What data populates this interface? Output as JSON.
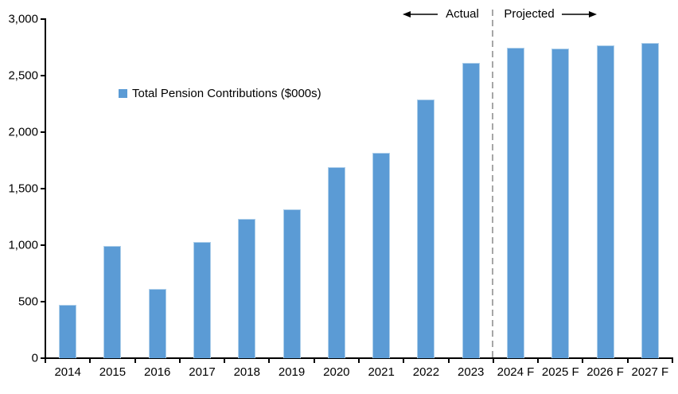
{
  "colors": {
    "bar_fill": "#5B9BD5",
    "bar_edge": "#aecfea",
    "divider": "#a6a6a6",
    "axis": "#000000",
    "background": "#ffffff"
  },
  "legend": {
    "label": "Total Pension Contributions ($000s)",
    "swatch_icon": "blue-square-legend-marker"
  },
  "annotations": {
    "actual_label": "Actual",
    "projected_label": "Projected",
    "actual_arrow_icon": "left-arrow-icon",
    "projected_arrow_icon": "right-arrow-icon"
  },
  "chart_data": {
    "type": "bar",
    "title": "",
    "xlabel": "",
    "ylabel": "",
    "series_name": "Total Pension Contributions ($000s)",
    "categories": [
      "2014",
      "2015",
      "2016",
      "2017",
      "2018",
      "2019",
      "2020",
      "2021",
      "2022",
      "2023",
      "2024 F",
      "2025 F",
      "2026 F",
      "2027 F"
    ],
    "values": [
      470,
      990,
      610,
      1030,
      1230,
      1320,
      1690,
      1820,
      2290,
      2610,
      2750,
      2740,
      2770,
      2790
    ],
    "ylim": [
      0,
      3000
    ],
    "y_tick_values": [
      0,
      500,
      1000,
      1500,
      2000,
      2500,
      3000
    ],
    "y_tick_labels": [
      "0",
      "500",
      "1,000",
      "1,500",
      "2,000",
      "2,500",
      "3,000"
    ],
    "grid": false,
    "legend_position": "inside-upper-left",
    "divider_after_category": "2023",
    "divider_style": "dashed",
    "actual_categories_end_index": 9,
    "projected_suffix": "F"
  }
}
